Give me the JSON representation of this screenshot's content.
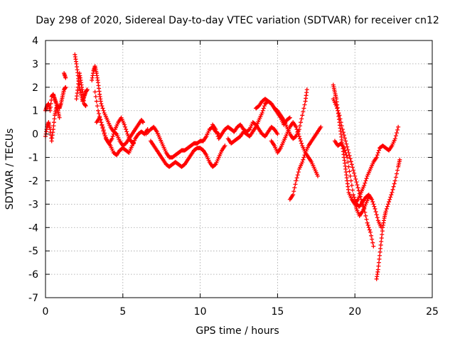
{
  "chart_data": {
    "type": "scatter",
    "title": "Day 298 of 2020, Sidereal Day-to-day VTEC variation (SDTVAR) for receiver cn12",
    "xlabel": "GPS time / hours",
    "ylabel": "SDTVAR / TECUs",
    "xlim": [
      0,
      25
    ],
    "ylim": [
      -7,
      4
    ],
    "xticks": [
      "0",
      "5",
      "10",
      "15",
      "20",
      "25"
    ],
    "yticks": [
      "4",
      "3",
      "2",
      "1",
      "0",
      "-1",
      "-2",
      "-3",
      "-4",
      "-5",
      "-6",
      "-7"
    ],
    "xtick_values": [
      0,
      5,
      10,
      15,
      20,
      25
    ],
    "ytick_values": [
      4,
      3,
      2,
      1,
      0,
      -1,
      -2,
      -3,
      -4,
      -5,
      -6,
      -7
    ],
    "grid": true,
    "marker": "+",
    "color": "#ff0000",
    "tracks": [
      [
        [
          0,
          -0.1
        ],
        [
          0.1,
          0.3
        ],
        [
          0.2,
          0.5
        ],
        [
          0.3,
          0.2
        ],
        [
          0.4,
          -0.3
        ],
        [
          0.5,
          0.2
        ],
        [
          0.6,
          0.8
        ],
        [
          0.7,
          1.1
        ],
        [
          0.8,
          1.2
        ],
        [
          0.9,
          1.1
        ],
        [
          1.0,
          1.3
        ],
        [
          1.1,
          1.6
        ],
        [
          1.2,
          1.9
        ],
        [
          1.3,
          2.0
        ]
      ],
      [
        [
          0.0,
          1.0
        ],
        [
          0.1,
          1.2
        ],
        [
          0.2,
          1.3
        ],
        [
          0.3,
          1.0
        ],
        [
          0.4,
          1.6
        ],
        [
          0.5,
          1.7
        ],
        [
          0.6,
          1.5
        ],
        [
          0.7,
          1.3
        ],
        [
          0.8,
          1.0
        ],
        [
          0.9,
          0.7
        ]
      ],
      [
        [
          1.2,
          2.6
        ],
        [
          1.3,
          2.4
        ]
      ],
      [
        [
          1.9,
          3.4
        ],
        [
          2.0,
          3.0
        ],
        [
          2.1,
          2.5
        ],
        [
          2.2,
          2.0
        ],
        [
          2.3,
          1.7
        ],
        [
          2.4,
          1.4
        ],
        [
          2.5,
          1.6
        ],
        [
          2.6,
          1.8
        ],
        [
          2.7,
          1.9
        ]
      ],
      [
        [
          2.0,
          1.5
        ],
        [
          2.1,
          2.0
        ],
        [
          2.2,
          2.6
        ],
        [
          2.3,
          2.2
        ],
        [
          2.4,
          1.8
        ],
        [
          2.5,
          1.3
        ],
        [
          2.6,
          1.2
        ]
      ],
      [
        [
          3.0,
          2.3
        ],
        [
          3.1,
          2.7
        ],
        [
          3.2,
          2.9
        ],
        [
          3.3,
          2.6
        ],
        [
          3.4,
          2.2
        ],
        [
          3.5,
          1.7
        ],
        [
          3.6,
          1.3
        ],
        [
          3.8,
          0.9
        ],
        [
          4.0,
          0.6
        ],
        [
          4.2,
          0.3
        ],
        [
          4.4,
          0.1
        ],
        [
          4.6,
          0.0
        ],
        [
          4.8,
          -0.3
        ],
        [
          5.0,
          -0.5
        ],
        [
          5.2,
          -0.4
        ],
        [
          5.4,
          -0.2
        ],
        [
          5.6,
          0.0
        ],
        [
          5.8,
          0.2
        ],
        [
          6.0,
          0.4
        ],
        [
          6.2,
          0.6
        ],
        [
          6.3,
          0.5
        ]
      ],
      [
        [
          3.2,
          1.8
        ],
        [
          3.4,
          1.0
        ],
        [
          3.6,
          0.5
        ],
        [
          3.8,
          0.0
        ],
        [
          4.0,
          -0.3
        ],
        [
          4.2,
          -0.5
        ],
        [
          4.4,
          -0.8
        ],
        [
          4.6,
          -0.9
        ],
        [
          4.8,
          -0.7
        ],
        [
          5.0,
          -0.6
        ],
        [
          5.2,
          -0.7
        ],
        [
          5.4,
          -0.8
        ],
        [
          5.6,
          -0.5
        ],
        [
          5.8,
          -0.2
        ],
        [
          6.0,
          0.0
        ],
        [
          6.2,
          0.1
        ],
        [
          6.4,
          0.0
        ],
        [
          6.6,
          0.2
        ]
      ],
      [
        [
          3.3,
          0.5
        ],
        [
          3.5,
          0.7
        ],
        [
          3.7,
          0.3
        ],
        [
          3.9,
          -0.2
        ],
        [
          4.1,
          -0.4
        ],
        [
          4.3,
          -0.2
        ],
        [
          4.5,
          0.2
        ],
        [
          4.7,
          0.5
        ],
        [
          4.9,
          0.7
        ],
        [
          5.1,
          0.4
        ],
        [
          5.3,
          0.0
        ],
        [
          5.5,
          -0.3
        ],
        [
          5.7,
          -0.4
        ]
      ],
      [
        [
          6.5,
          0.0
        ],
        [
          6.8,
          0.2
        ],
        [
          7.0,
          0.3
        ],
        [
          7.2,
          0.1
        ],
        [
          7.4,
          -0.2
        ],
        [
          7.6,
          -0.5
        ],
        [
          7.8,
          -0.8
        ],
        [
          8.0,
          -1.0
        ],
        [
          8.2,
          -1.0
        ],
        [
          8.4,
          -0.9
        ],
        [
          8.6,
          -0.8
        ],
        [
          8.8,
          -0.7
        ],
        [
          9.0,
          -0.7
        ],
        [
          9.2,
          -0.6
        ],
        [
          9.4,
          -0.5
        ],
        [
          9.6,
          -0.4
        ],
        [
          9.8,
          -0.4
        ],
        [
          10.0,
          -0.3
        ],
        [
          10.2,
          -0.3
        ],
        [
          10.4,
          -0.1
        ],
        [
          10.6,
          0.2
        ],
        [
          10.8,
          0.3
        ],
        [
          11.0,
          0.1
        ],
        [
          11.2,
          0.0
        ]
      ],
      [
        [
          6.8,
          -0.3
        ],
        [
          7.0,
          -0.5
        ],
        [
          7.2,
          -0.7
        ],
        [
          7.4,
          -0.9
        ],
        [
          7.6,
          -1.1
        ],
        [
          7.8,
          -1.3
        ],
        [
          8.0,
          -1.4
        ],
        [
          8.2,
          -1.3
        ],
        [
          8.4,
          -1.2
        ],
        [
          8.6,
          -1.3
        ],
        [
          8.8,
          -1.4
        ],
        [
          9.0,
          -1.3
        ],
        [
          9.2,
          -1.1
        ],
        [
          9.4,
          -0.9
        ],
        [
          9.6,
          -0.7
        ],
        [
          9.8,
          -0.6
        ],
        [
          10.0,
          -0.6
        ],
        [
          10.2,
          -0.7
        ],
        [
          10.4,
          -0.9
        ],
        [
          10.6,
          -1.2
        ],
        [
          10.8,
          -1.4
        ],
        [
          11.0,
          -1.3
        ],
        [
          11.2,
          -1.0
        ],
        [
          11.4,
          -0.7
        ],
        [
          11.6,
          -0.5
        ]
      ],
      [
        [
          10.8,
          0.4
        ],
        [
          11.0,
          0.2
        ],
        [
          11.2,
          -0.2
        ],
        [
          11.4,
          0.0
        ],
        [
          11.6,
          0.2
        ],
        [
          11.8,
          0.3
        ],
        [
          12.0,
          0.2
        ],
        [
          12.2,
          0.1
        ],
        [
          12.4,
          0.3
        ],
        [
          12.6,
          0.4
        ],
        [
          12.8,
          0.2
        ],
        [
          13.0,
          0.1
        ],
        [
          13.2,
          0.2
        ],
        [
          13.4,
          0.5
        ],
        [
          13.6,
          0.4
        ],
        [
          13.8,
          0.2
        ],
        [
          14.0,
          0.0
        ],
        [
          14.2,
          -0.1
        ],
        [
          14.4,
          0.1
        ],
        [
          14.6,
          0.3
        ],
        [
          14.8,
          0.2
        ],
        [
          15.0,
          0.0
        ]
      ],
      [
        [
          11.8,
          -0.2
        ],
        [
          12.0,
          -0.4
        ],
        [
          12.2,
          -0.3
        ],
        [
          12.4,
          -0.2
        ],
        [
          12.6,
          -0.1
        ],
        [
          12.8,
          0.1
        ],
        [
          13.0,
          0.0
        ],
        [
          13.2,
          -0.1
        ],
        [
          13.4,
          0.1
        ],
        [
          13.6,
          0.3
        ],
        [
          13.8,
          0.6
        ],
        [
          14.0,
          0.9
        ],
        [
          14.2,
          1.3
        ],
        [
          14.4,
          1.4
        ],
        [
          14.6,
          1.3
        ],
        [
          14.8,
          1.1
        ],
        [
          15.0,
          0.9
        ],
        [
          15.2,
          0.7
        ],
        [
          15.4,
          0.4
        ],
        [
          15.6,
          0.6
        ],
        [
          15.8,
          0.7
        ]
      ],
      [
        [
          13.6,
          1.1
        ],
        [
          13.8,
          1.2
        ],
        [
          14.0,
          1.4
        ],
        [
          14.2,
          1.5
        ],
        [
          14.4,
          1.4
        ],
        [
          14.6,
          1.3
        ],
        [
          14.8,
          1.1
        ],
        [
          15.0,
          1.0
        ],
        [
          15.2,
          0.8
        ],
        [
          15.4,
          0.6
        ],
        [
          15.6,
          0.3
        ],
        [
          15.8,
          0.0
        ],
        [
          16.0,
          -0.2
        ],
        [
          16.2,
          -0.1
        ],
        [
          16.4,
          0.2
        ],
        [
          16.6,
          0.8
        ],
        [
          16.8,
          1.4
        ],
        [
          16.9,
          1.9
        ]
      ],
      [
        [
          14.6,
          -0.3
        ],
        [
          14.8,
          -0.5
        ],
        [
          15.0,
          -0.8
        ],
        [
          15.2,
          -0.6
        ],
        [
          15.4,
          -0.3
        ],
        [
          15.6,
          0.0
        ],
        [
          15.8,
          0.3
        ],
        [
          16.0,
          0.5
        ],
        [
          16.2,
          0.3
        ],
        [
          16.4,
          -0.1
        ],
        [
          16.6,
          -0.5
        ],
        [
          16.8,
          -0.8
        ],
        [
          17.0,
          -1.0
        ],
        [
          17.2,
          -1.2
        ],
        [
          17.4,
          -1.5
        ],
        [
          17.6,
          -1.8
        ]
      ],
      [
        [
          15.8,
          -2.8
        ],
        [
          16.0,
          -2.6
        ],
        [
          16.2,
          -2.0
        ],
        [
          16.4,
          -1.5
        ],
        [
          16.6,
          -1.2
        ],
        [
          16.8,
          -0.8
        ],
        [
          17.0,
          -0.5
        ],
        [
          17.2,
          -0.3
        ],
        [
          17.4,
          -0.1
        ],
        [
          17.6,
          0.1
        ],
        [
          17.8,
          0.3
        ]
      ],
      [
        [
          18.6,
          2.1
        ],
        [
          18.7,
          1.8
        ],
        [
          18.8,
          1.5
        ],
        [
          18.9,
          1.0
        ],
        [
          19.0,
          0.5
        ],
        [
          19.1,
          0.0
        ],
        [
          19.2,
          -0.5
        ],
        [
          19.3,
          -1.0
        ],
        [
          19.4,
          -1.5
        ],
        [
          19.5,
          -2.0
        ],
        [
          19.6,
          -2.5
        ],
        [
          19.8,
          -2.8
        ],
        [
          20.0,
          -3.0
        ],
        [
          20.2,
          -2.8
        ],
        [
          20.4,
          -2.5
        ],
        [
          20.6,
          -2.2
        ],
        [
          20.8,
          -1.8
        ],
        [
          21.0,
          -1.5
        ],
        [
          21.2,
          -1.2
        ],
        [
          21.4,
          -1.0
        ],
        [
          21.6,
          -0.6
        ],
        [
          21.8,
          -0.5
        ],
        [
          22.0,
          -0.6
        ],
        [
          22.2,
          -0.7
        ],
        [
          22.4,
          -0.5
        ],
        [
          22.6,
          -0.2
        ],
        [
          22.8,
          0.3
        ]
      ],
      [
        [
          18.6,
          1.5
        ],
        [
          18.8,
          1.2
        ],
        [
          19.0,
          0.8
        ],
        [
          19.2,
          0.2
        ],
        [
          19.4,
          -0.3
        ],
        [
          19.6,
          -0.8
        ],
        [
          19.8,
          -1.3
        ],
        [
          20.0,
          -1.8
        ],
        [
          20.2,
          -2.3
        ],
        [
          20.4,
          -2.8
        ],
        [
          20.6,
          -3.2
        ],
        [
          20.8,
          -3.8
        ],
        [
          21.0,
          -4.2
        ],
        [
          21.2,
          -4.8
        ]
      ],
      [
        [
          18.7,
          -0.3
        ],
        [
          18.9,
          -0.5
        ],
        [
          19.1,
          -0.4
        ],
        [
          19.3,
          -0.6
        ],
        [
          19.5,
          -1.0
        ],
        [
          19.7,
          -1.8
        ],
        [
          19.9,
          -2.6
        ],
        [
          20.1,
          -3.0
        ],
        [
          20.3,
          -3.1
        ],
        [
          20.5,
          -2.9
        ],
        [
          20.7,
          -2.7
        ],
        [
          20.9,
          -2.6
        ],
        [
          21.1,
          -2.8
        ],
        [
          21.3,
          -3.2
        ],
        [
          21.5,
          -3.7
        ],
        [
          21.7,
          -4.0
        ]
      ],
      [
        [
          21.4,
          -6.2
        ],
        [
          21.5,
          -5.8
        ],
        [
          21.6,
          -5.2
        ],
        [
          21.7,
          -4.6
        ],
        [
          21.8,
          -4.0
        ],
        [
          21.9,
          -3.6
        ],
        [
          22.0,
          -3.3
        ],
        [
          22.2,
          -2.9
        ],
        [
          22.4,
          -2.5
        ],
        [
          22.6,
          -2.0
        ],
        [
          22.8,
          -1.4
        ],
        [
          22.9,
          -1.1
        ]
      ],
      [
        [
          20.0,
          -2.9
        ],
        [
          20.1,
          -3.2
        ],
        [
          20.3,
          -3.5
        ],
        [
          20.5,
          -3.3
        ],
        [
          20.7,
          -3.0
        ],
        [
          20.9,
          -2.7
        ]
      ]
    ]
  }
}
